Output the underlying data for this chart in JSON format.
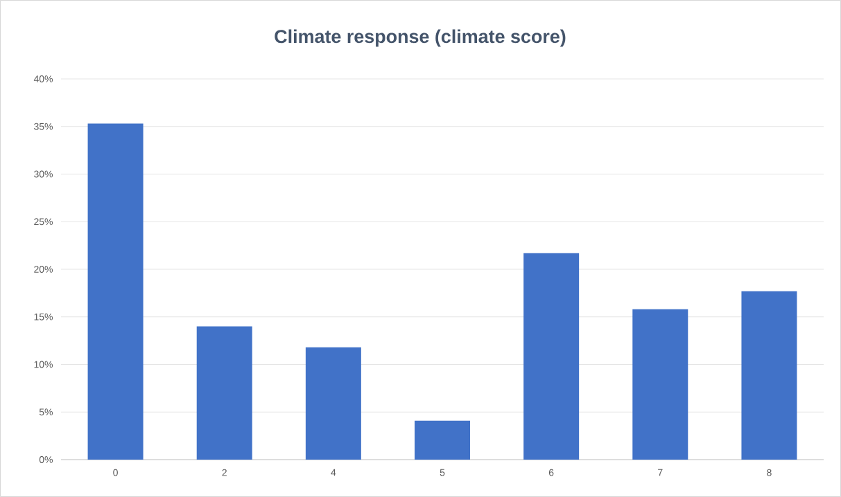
{
  "chart_data": {
    "type": "bar",
    "title": "Climate response (climate score)",
    "categories": [
      "0",
      "2",
      "4",
      "5",
      "6",
      "7",
      "8"
    ],
    "values": [
      35.3,
      14.0,
      11.8,
      4.1,
      21.7,
      15.8,
      17.7
    ],
    "color": "#4172c8",
    "ylim": [
      0,
      40
    ],
    "yticks": [
      {
        "value": 0,
        "label": "0%"
      },
      {
        "value": 5,
        "label": "5%"
      },
      {
        "value": 10,
        "label": "10%"
      },
      {
        "value": 15,
        "label": "15%"
      },
      {
        "value": 20,
        "label": "20%"
      },
      {
        "value": 25,
        "label": "25%"
      },
      {
        "value": 30,
        "label": "30%"
      },
      {
        "value": 35,
        "label": "35%"
      },
      {
        "value": 40,
        "label": "40%"
      }
    ],
    "grid": "y"
  }
}
